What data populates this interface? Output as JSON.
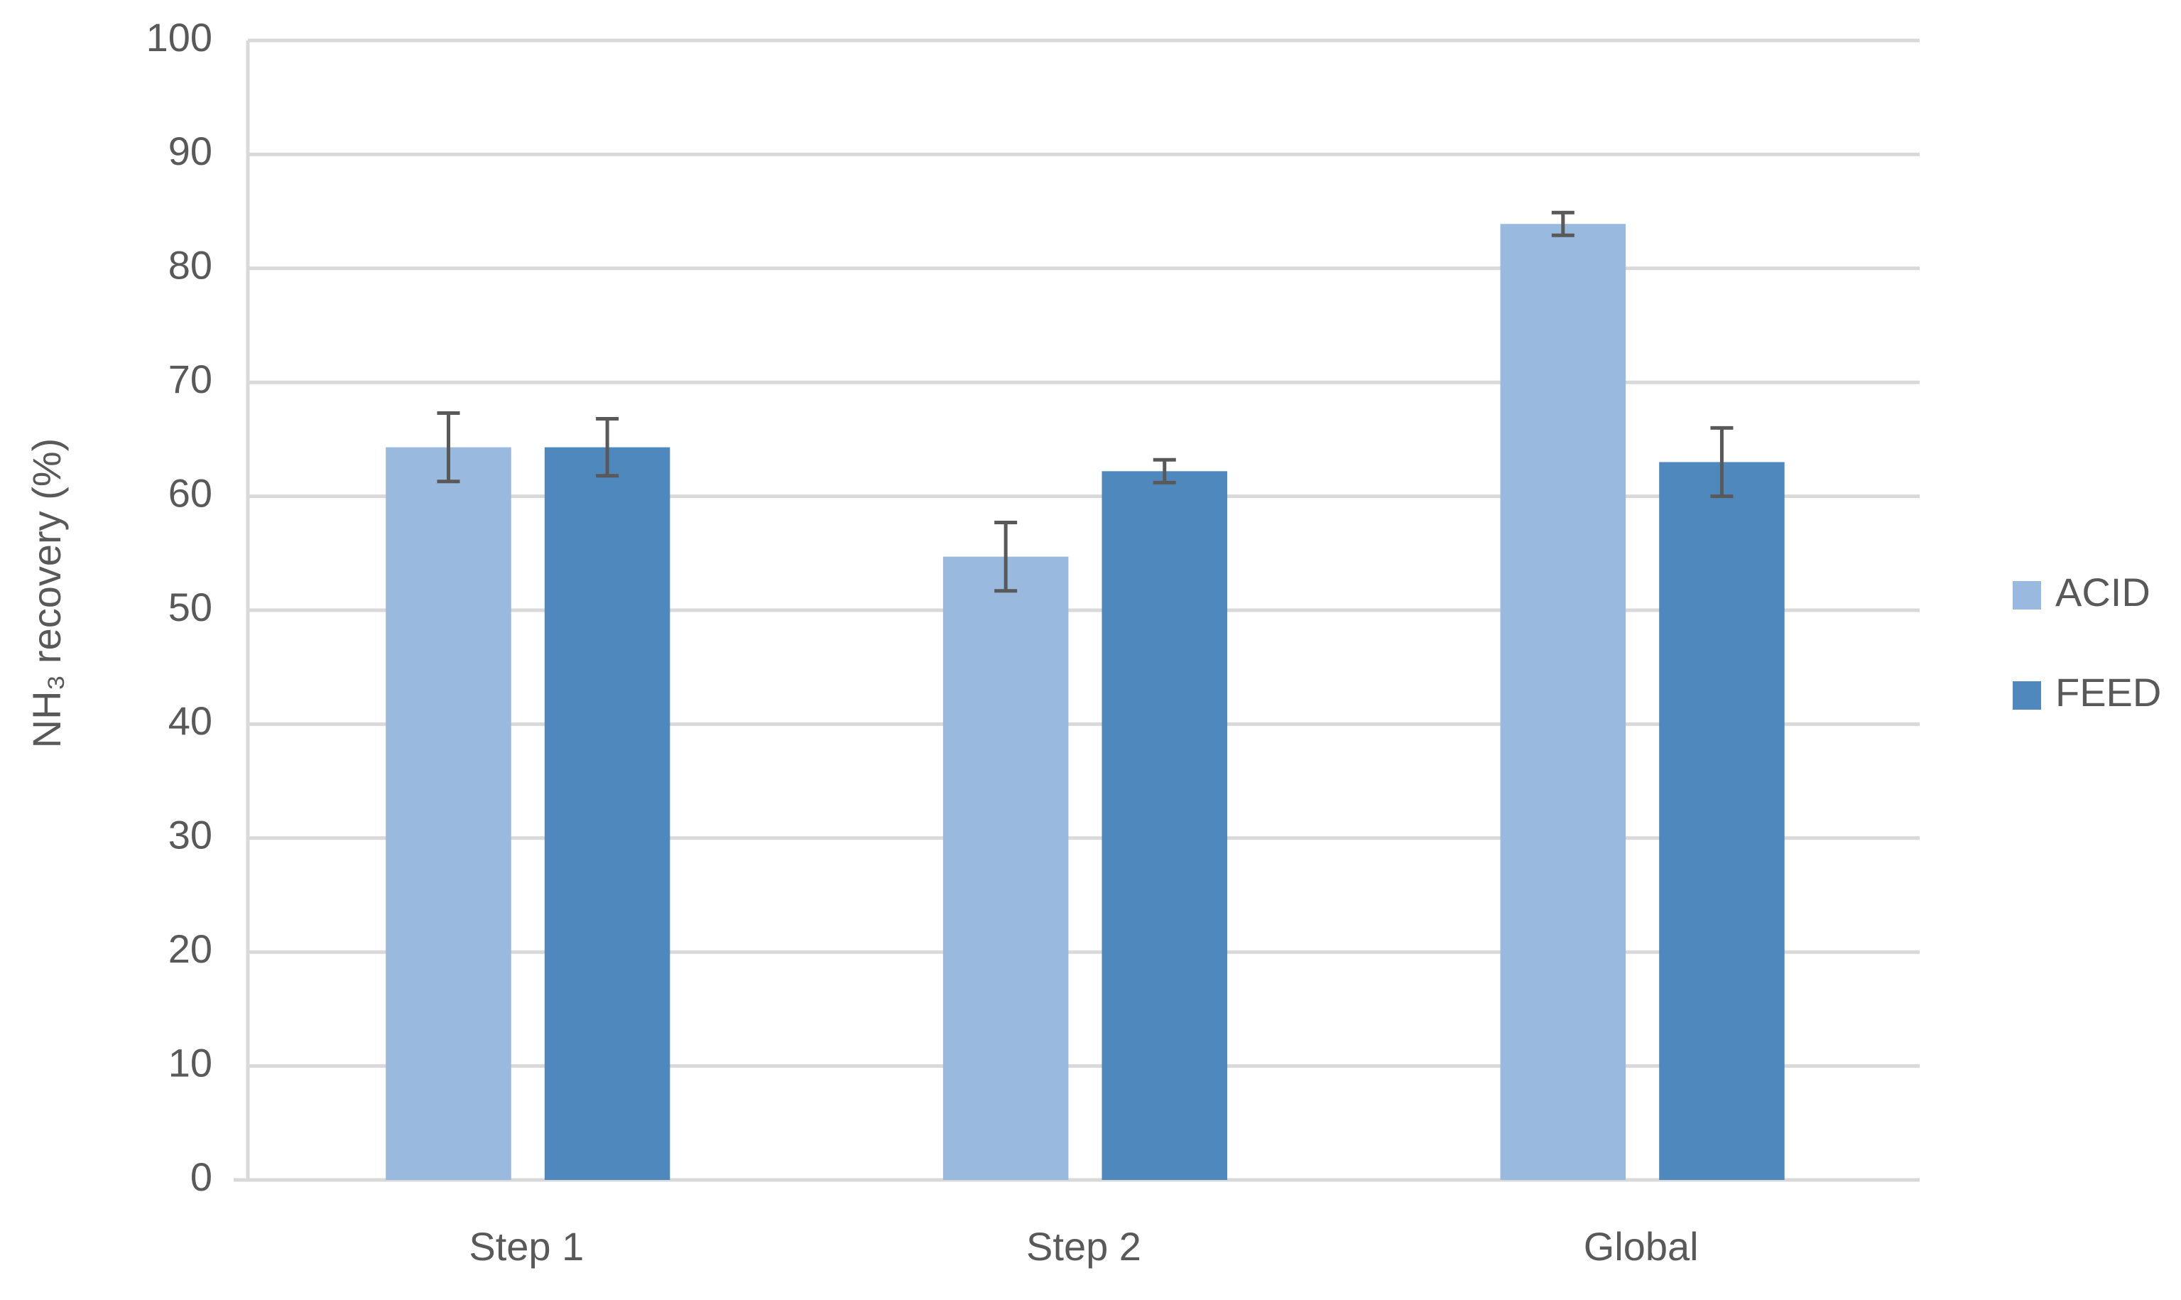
{
  "chart_data": {
    "type": "bar",
    "y_label": "NH₃ recovery (%)",
    "categories": [
      "Step 1",
      "Step 2",
      "Global"
    ],
    "series": [
      {
        "name": "ACID",
        "color": "#99b9df",
        "values": [
          64.3,
          54.7,
          83.9
        ],
        "errors": [
          3.0,
          3.0,
          1.0
        ]
      },
      {
        "name": "FEED",
        "color": "#4f88bc",
        "values": [
          64.3,
          62.2,
          63.0
        ],
        "errors": [
          2.5,
          1.0,
          3.0
        ]
      }
    ],
    "ylim": [
      0,
      100
    ],
    "yticks": [
      0,
      10,
      20,
      30,
      40,
      50,
      60,
      70,
      80,
      90,
      100
    ],
    "grid": true,
    "legend": "right"
  }
}
